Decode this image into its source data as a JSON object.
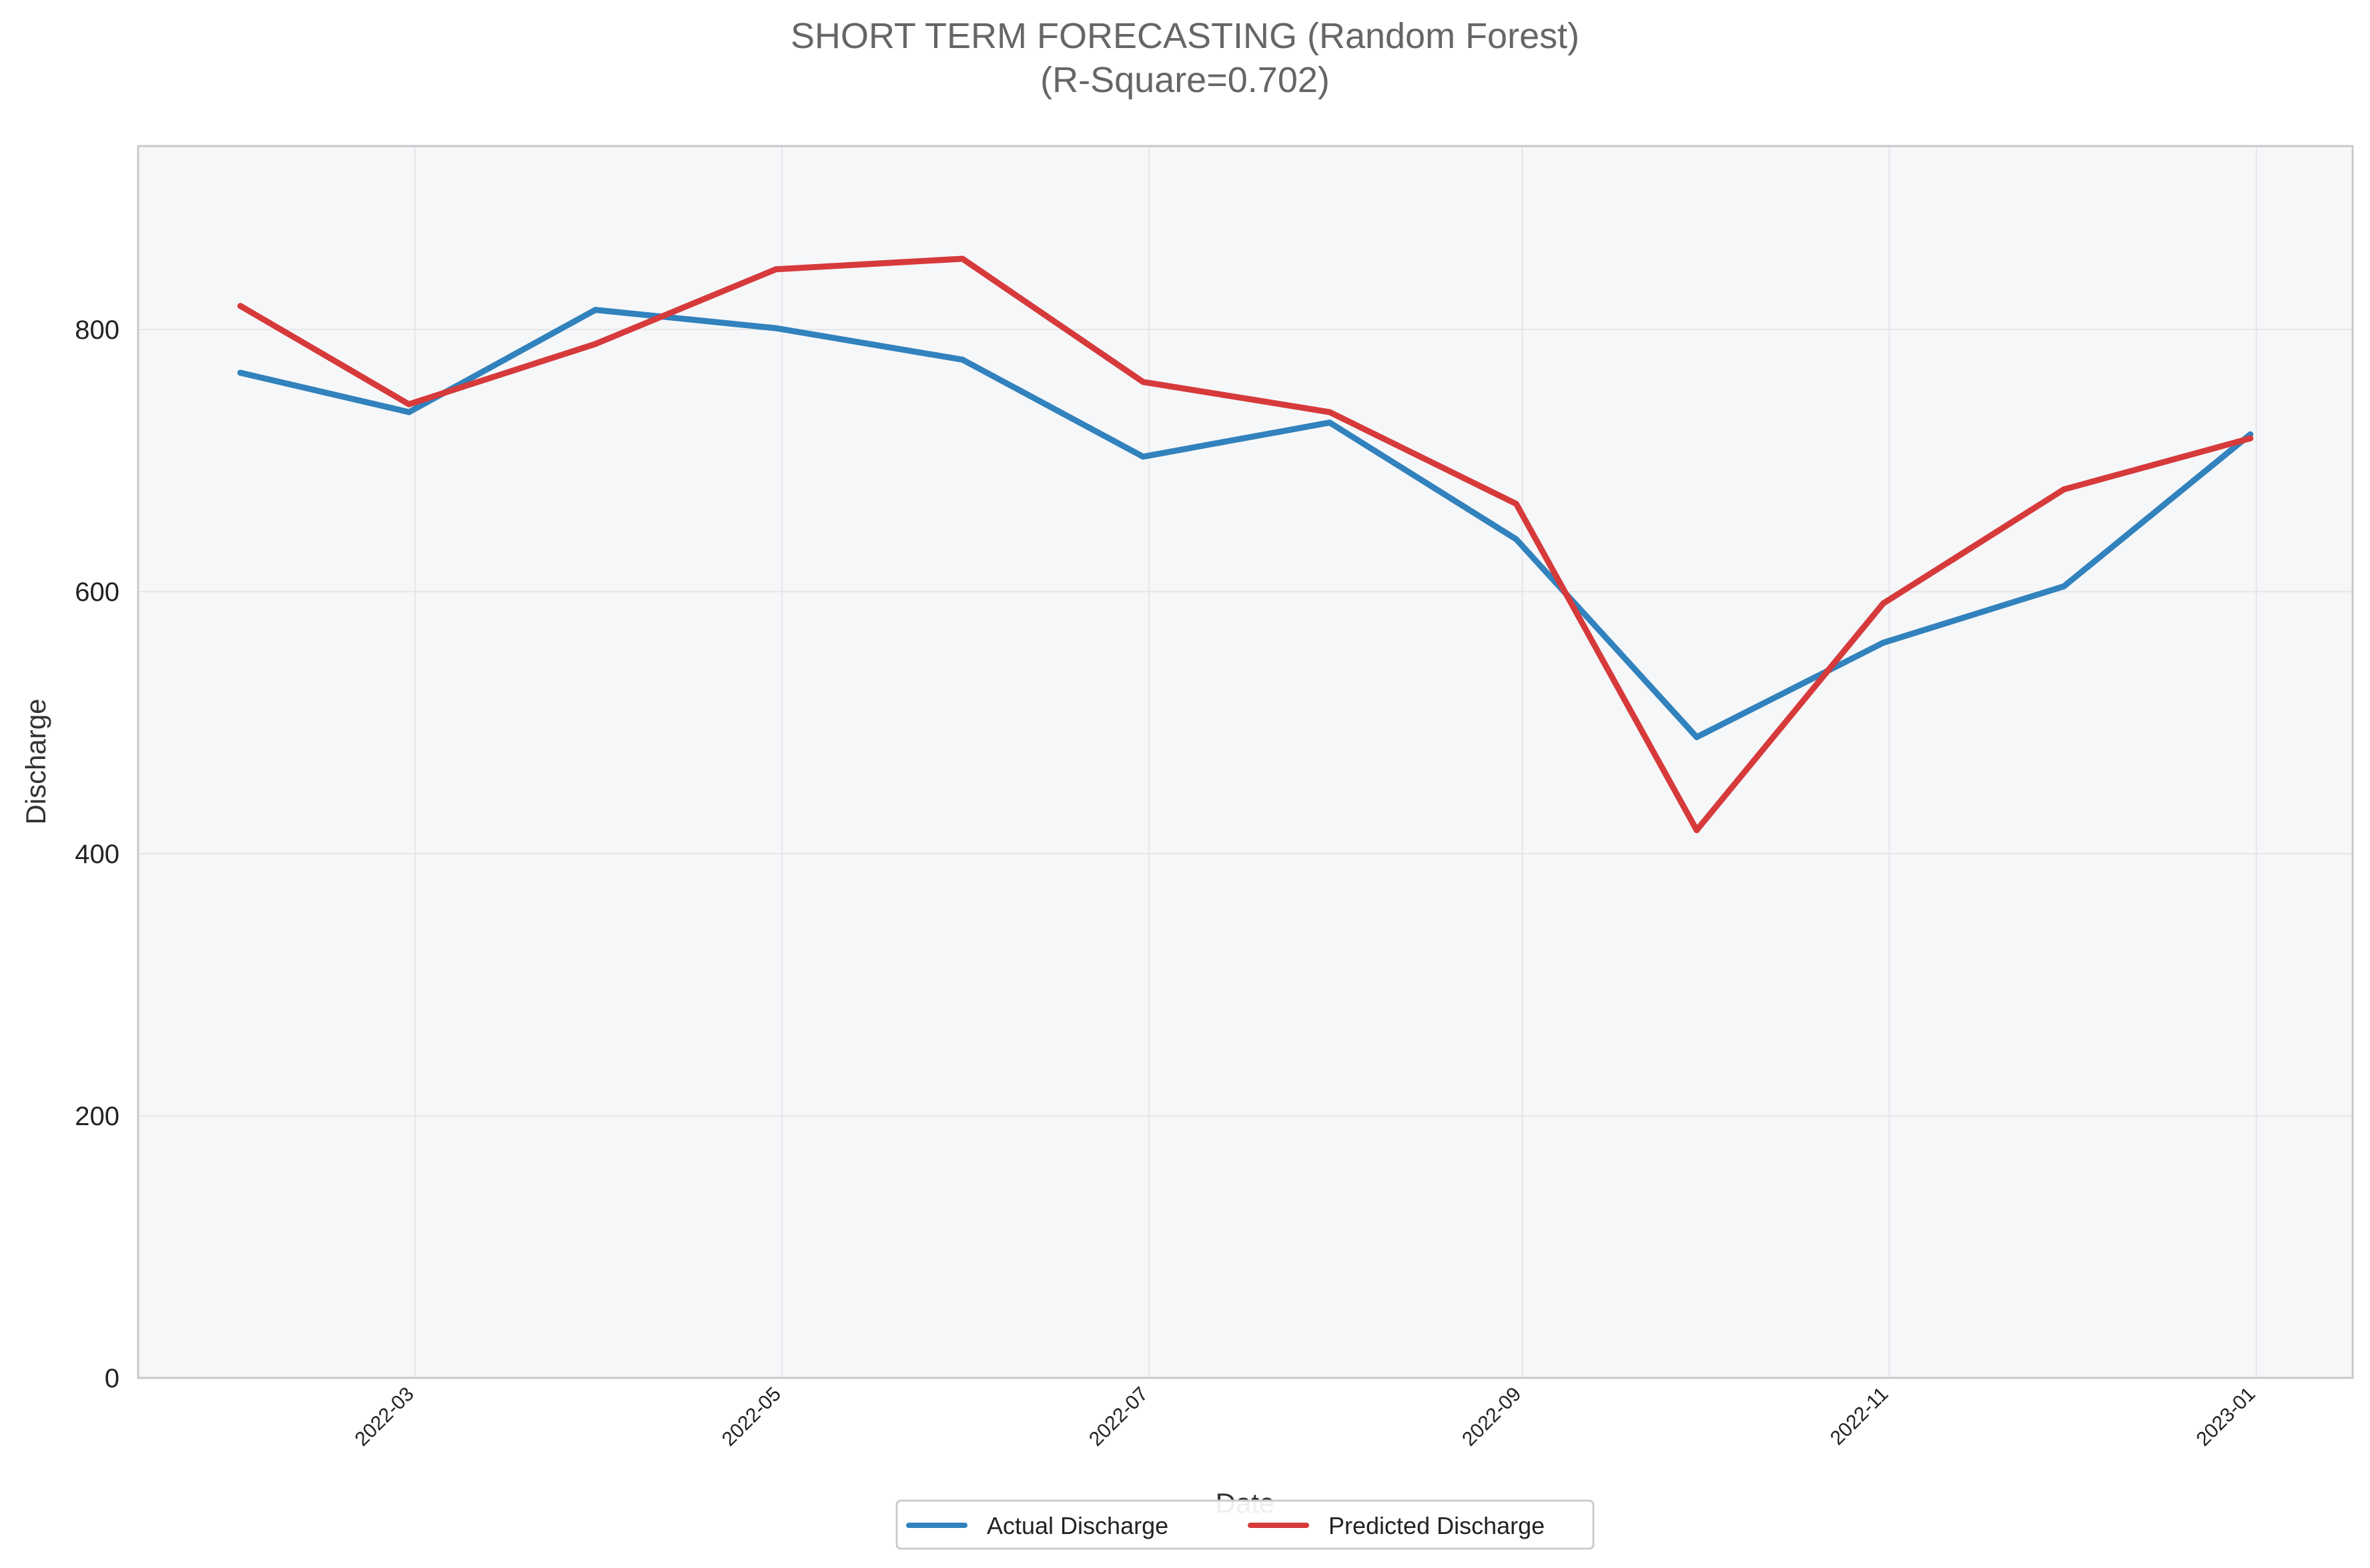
{
  "chart_data": {
    "type": "line",
    "title": "SHORT TERM FORECASTING (Random Forest)",
    "subtitle": "(R-Square=0.702)",
    "xlabel": "Date",
    "ylabel": "Discharge",
    "x": [
      "2022-01-31",
      "2022-02-28",
      "2022-03-31",
      "2022-04-30",
      "2022-05-31",
      "2022-06-30",
      "2022-07-31",
      "2022-08-31",
      "2022-09-30",
      "2022-10-31",
      "2022-11-30",
      "2022-12-31"
    ],
    "xlim": [
      "2022-01-14",
      "2023-01-17"
    ],
    "xticks": [
      "2022-03-01",
      "2022-05-01",
      "2022-07-01",
      "2022-09-01",
      "2022-11-01",
      "2023-01-01"
    ],
    "xtick_labels": [
      "2022-03",
      "2022-05",
      "2022-07",
      "2022-09",
      "2022-11",
      "2023-01"
    ],
    "ylim": [
      0,
      940
    ],
    "yticks": [
      0,
      200,
      400,
      600,
      800
    ],
    "ytick_labels": [
      "0",
      "200",
      "400",
      "600",
      "800"
    ],
    "grid": true,
    "legend_position": "bottom-center",
    "series": [
      {
        "name": "Actual Discharge",
        "color": "#3182bd",
        "values": [
          767,
          737,
          815,
          801,
          777,
          703,
          729,
          640,
          489,
          561,
          604,
          720
        ]
      },
      {
        "name": "Predicted Discharge",
        "color": "#d63a3a",
        "values": [
          818,
          743,
          789,
          846,
          854,
          760,
          737,
          667,
          418,
          591,
          678,
          717
        ]
      }
    ]
  },
  "colors": {
    "plot_background": "#f6f7f9",
    "grid": "#e6e6e9",
    "frame": "#c8c8cc"
  }
}
